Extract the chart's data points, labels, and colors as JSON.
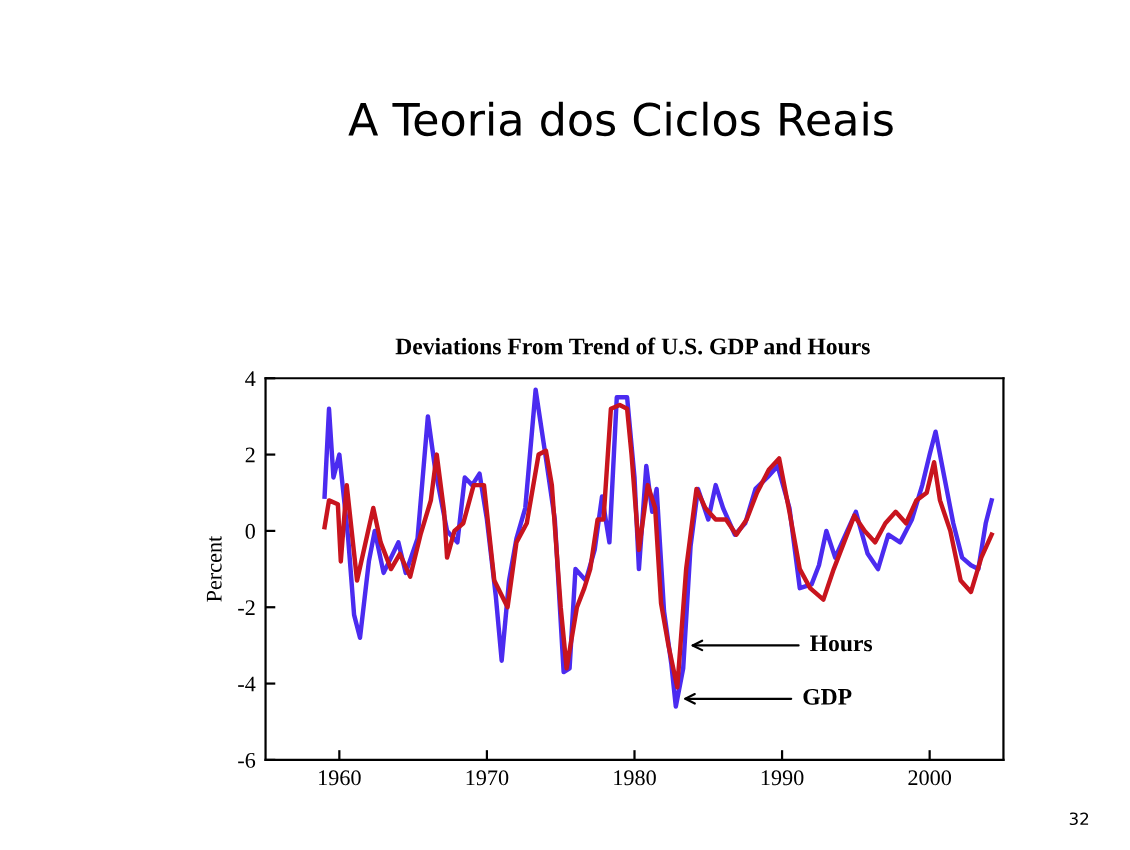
{
  "chart_data": {
    "type": "line",
    "title": "A Teoria dos Ciclos Reais",
    "subtitle": "Deviations From Trend of U.S. GDP and Hours",
    "ylabel": "Percent",
    "xlim": [
      1955,
      2005
    ],
    "xticks": [
      1960,
      1970,
      1980,
      1990,
      2000
    ],
    "ylim": [
      -6,
      4
    ],
    "yticks": [
      -6,
      -4,
      -2,
      0,
      2,
      4
    ],
    "grid": false,
    "legend": false,
    "marker": "none",
    "line_style": "solid",
    "series": [
      {
        "color": "#4b2bf0",
        "x": [
          1959.0,
          1959.3,
          1959.6,
          1960.0,
          1960.3,
          1960.6,
          1961.0,
          1961.4,
          1962.0,
          1962.4,
          1963.0,
          1964.0,
          1964.5,
          1965.3,
          1966.0,
          1966.5,
          1967.3,
          1968.0,
          1968.5,
          1969.0,
          1969.5,
          1970.0,
          1970.6,
          1971.0,
          1971.5,
          1972.0,
          1972.6,
          1973.3,
          1974.0,
          1974.6,
          1975.2,
          1975.6,
          1976.0,
          1976.7,
          1977.3,
          1977.8,
          1978.3,
          1978.8,
          1979.5,
          1980.0,
          1980.3,
          1980.8,
          1981.2,
          1981.5,
          1982.0,
          1982.5,
          1982.8,
          1983.3,
          1983.8,
          1984.3,
          1985.0,
          1985.5,
          1986.0,
          1986.8,
          1987.5,
          1988.2,
          1989.0,
          1989.7,
          1990.5,
          1991.2,
          1992.0,
          1992.5,
          1993.0,
          1993.6,
          1994.3,
          1995.0,
          1995.8,
          1996.5,
          1997.2,
          1998.0,
          1998.8,
          1999.5,
          2000.0,
          2000.4,
          2001.0,
          2001.6,
          2002.2,
          2002.8,
          2003.3,
          2003.8,
          2004.2
        ],
        "values": [
          0.9,
          3.2,
          1.4,
          2.0,
          0.9,
          -0.2,
          -2.2,
          -2.8,
          -0.8,
          0.0,
          -1.1,
          -0.3,
          -1.1,
          -0.2,
          3.0,
          1.6,
          0.0,
          -0.3,
          1.4,
          1.2,
          1.5,
          0.3,
          -1.7,
          -3.4,
          -1.3,
          -0.2,
          0.6,
          3.7,
          1.9,
          0.3,
          -3.7,
          -3.6,
          -1.0,
          -1.3,
          -0.5,
          0.9,
          -0.3,
          3.5,
          3.5,
          1.4,
          -1.0,
          1.7,
          0.5,
          1.1,
          -2.1,
          -3.5,
          -4.6,
          -3.6,
          -0.4,
          1.1,
          0.3,
          1.2,
          0.6,
          -0.1,
          0.2,
          1.1,
          1.4,
          1.7,
          0.6,
          -1.5,
          -1.4,
          -0.9,
          0.0,
          -0.7,
          -0.1,
          0.5,
          -0.6,
          -1.0,
          -0.1,
          -0.3,
          0.3,
          1.2,
          2.0,
          2.6,
          1.4,
          0.2,
          -0.7,
          -0.9,
          -1.0,
          0.2,
          0.8
        ]
      },
      {
        "color": "#c8141e",
        "x": [
          1959.0,
          1959.3,
          1959.9,
          1960.1,
          1960.5,
          1961.2,
          1962.3,
          1962.8,
          1963.5,
          1964.1,
          1964.8,
          1965.5,
          1966.2,
          1966.6,
          1967.1,
          1967.3,
          1967.8,
          1968.4,
          1969.1,
          1969.8,
          1970.5,
          1971.4,
          1972.0,
          1972.7,
          1973.5,
          1974.0,
          1974.4,
          1975.0,
          1975.4,
          1976.1,
          1976.6,
          1977.0,
          1977.5,
          1977.9,
          1978.4,
          1979.0,
          1979.5,
          1979.8,
          1980.3,
          1980.9,
          1981.4,
          1981.8,
          1982.3,
          1982.9,
          1983.5,
          1984.2,
          1984.8,
          1985.5,
          1986.2,
          1986.9,
          1987.6,
          1988.3,
          1989.1,
          1989.8,
          1990.5,
          1991.2,
          1991.9,
          1992.8,
          1993.5,
          1994.2,
          1994.9,
          1995.6,
          1996.3,
          1997.0,
          1997.7,
          1998.4,
          1999.1,
          1999.8,
          2000.3,
          2000.7,
          2001.4,
          2002.1,
          2002.8,
          2003.5,
          2004.2
        ],
        "values": [
          0.1,
          0.8,
          0.7,
          -0.8,
          1.2,
          -1.3,
          0.6,
          -0.3,
          -1.0,
          -0.6,
          -1.2,
          -0.1,
          0.8,
          2.0,
          0.5,
          -0.7,
          0.0,
          0.2,
          1.2,
          1.2,
          -1.3,
          -2.0,
          -0.3,
          0.2,
          2.0,
          2.1,
          1.2,
          -2.0,
          -3.6,
          -2.0,
          -1.5,
          -1.0,
          0.3,
          0.3,
          3.2,
          3.3,
          3.2,
          2.0,
          -0.5,
          1.2,
          0.6,
          -1.9,
          -3.0,
          -4.1,
          -1.0,
          1.1,
          0.6,
          0.3,
          0.3,
          -0.1,
          0.3,
          1.0,
          1.6,
          1.9,
          0.5,
          -1.0,
          -1.5,
          -1.8,
          -1.0,
          -0.3,
          0.4,
          0.0,
          -0.3,
          0.2,
          0.5,
          0.2,
          0.8,
          1.0,
          1.8,
          0.8,
          0.0,
          -1.3,
          -1.6,
          -0.7,
          -0.1
        ]
      }
    ],
    "annotations": [
      {
        "text": "Hours",
        "x": 1983.4,
        "y": -3.0
      },
      {
        "text": "GDP",
        "x": 1982.9,
        "y": -4.4
      },
      "32"
    ]
  }
}
